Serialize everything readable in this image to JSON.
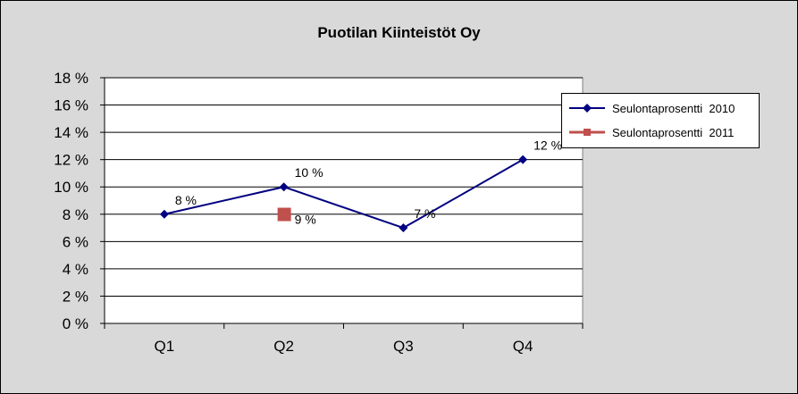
{
  "chart_data": {
    "type": "line",
    "title": "Puotilan Kiinteistöt Oy",
    "categories": [
      "Q1",
      "Q2",
      "Q3",
      "Q4"
    ],
    "series": [
      {
        "name": "Seulontaprosentti  2010",
        "values": [
          8,
          10,
          7,
          12
        ],
        "data_labels": [
          "8 %",
          "10 %",
          "7 %",
          "12 %"
        ],
        "color": "#000080",
        "marker": "diamond"
      },
      {
        "name": "Seulontaprosentti  2011",
        "values": [
          null,
          9,
          null,
          null
        ],
        "data_labels": [
          null,
          "9 %",
          null,
          null
        ],
        "color": "#c0504d",
        "marker": "square"
      }
    ],
    "ylim": [
      0,
      18
    ],
    "y_ticks": [
      "0 %",
      "2 %",
      "4 %",
      "6 %",
      "8 %",
      "10 %",
      "12 %",
      "14 %",
      "16 %",
      "18 %"
    ],
    "grid": true,
    "legend_position": "right",
    "plot_background": "#ffffff",
    "chart_background": "#d9d9d9"
  }
}
